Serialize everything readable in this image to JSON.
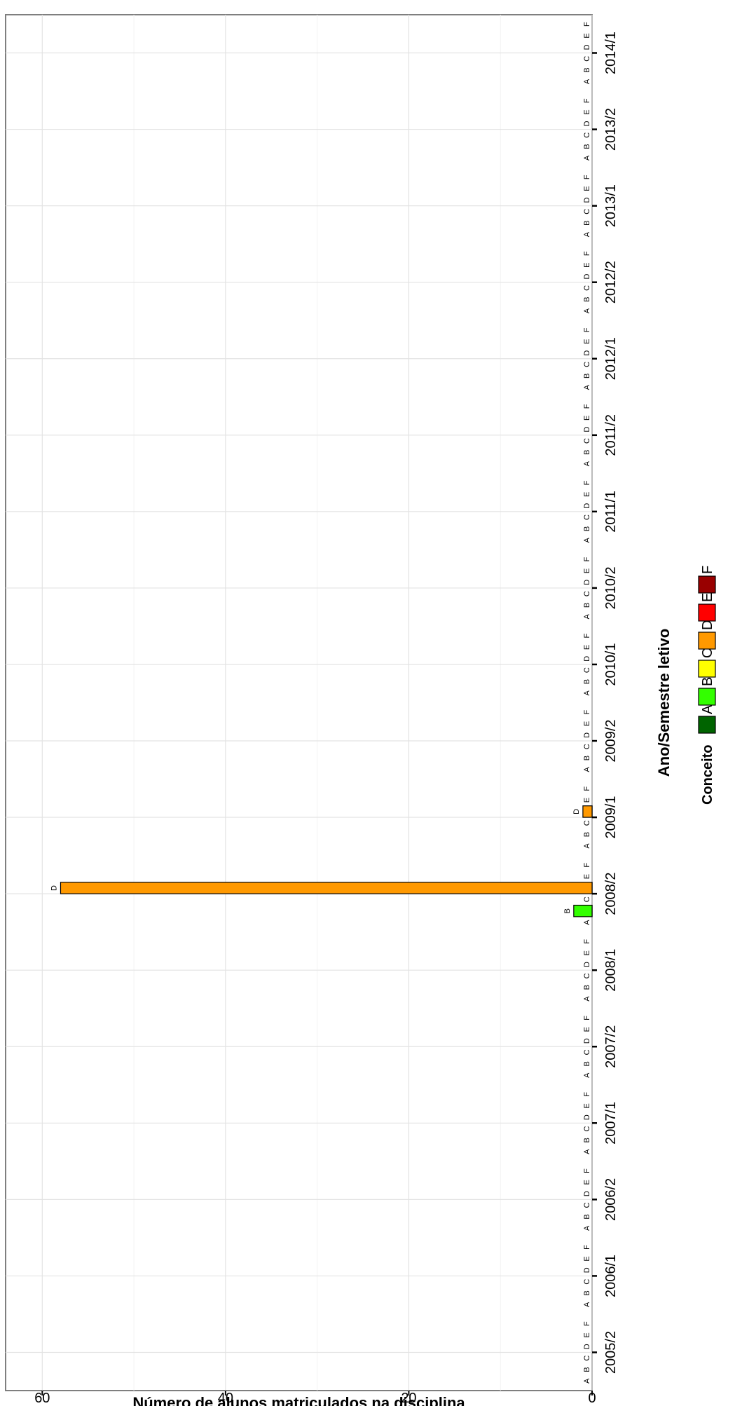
{
  "chart_data": {
    "type": "bar",
    "orientation": "rotated-90",
    "xlabel": "Ano/Semestre letivo",
    "ylabel": "Número de alunos matriculados na disciplina",
    "ylim": [
      0,
      64
    ],
    "y_ticks": [
      0,
      20,
      40,
      60
    ],
    "grid": true,
    "categories": [
      "2005/2",
      "2006/1",
      "2006/2",
      "2007/1",
      "2007/2",
      "2008/1",
      "2008/2",
      "2009/1",
      "2009/2",
      "2010/1",
      "2010/2",
      "2011/1",
      "2011/2",
      "2012/1",
      "2012/2",
      "2013/1",
      "2013/2",
      "2014/1"
    ],
    "grade_letters": [
      "A",
      "B",
      "C",
      "D",
      "E",
      "F"
    ],
    "series": [
      {
        "name": "A",
        "color": "#006400",
        "values": [
          0,
          0,
          0,
          0,
          0,
          0,
          0,
          0,
          0,
          0,
          0,
          0,
          0,
          0,
          0,
          0,
          0,
          0
        ]
      },
      {
        "name": "B",
        "color": "#33ff00",
        "values": [
          0,
          0,
          0,
          0,
          0,
          0,
          2,
          0,
          0,
          0,
          0,
          0,
          0,
          0,
          0,
          0,
          0,
          0
        ]
      },
      {
        "name": "C",
        "color": "#ffff00",
        "values": [
          0,
          0,
          0,
          0,
          0,
          0,
          0,
          0,
          0,
          0,
          0,
          0,
          0,
          0,
          0,
          0,
          0,
          0
        ]
      },
      {
        "name": "D",
        "color": "#ff9900",
        "values": [
          0,
          0,
          0,
          0,
          0,
          0,
          58,
          1,
          0,
          0,
          0,
          0,
          0,
          0,
          0,
          0,
          0,
          0
        ]
      },
      {
        "name": "E",
        "color": "#ff0000",
        "values": [
          0,
          0,
          0,
          0,
          0,
          0,
          0,
          0,
          0,
          0,
          0,
          0,
          0,
          0,
          0,
          0,
          0,
          0
        ]
      },
      {
        "name": "F",
        "color": "#990000",
        "values": [
          0,
          0,
          0,
          0,
          0,
          0,
          0,
          0,
          0,
          0,
          0,
          0,
          0,
          0,
          0,
          0,
          0,
          0
        ]
      }
    ],
    "legend": {
      "title": "Conceito",
      "placement": "bottom",
      "items": [
        "A",
        "B",
        "C",
        "D",
        "E",
        "F"
      ]
    }
  }
}
